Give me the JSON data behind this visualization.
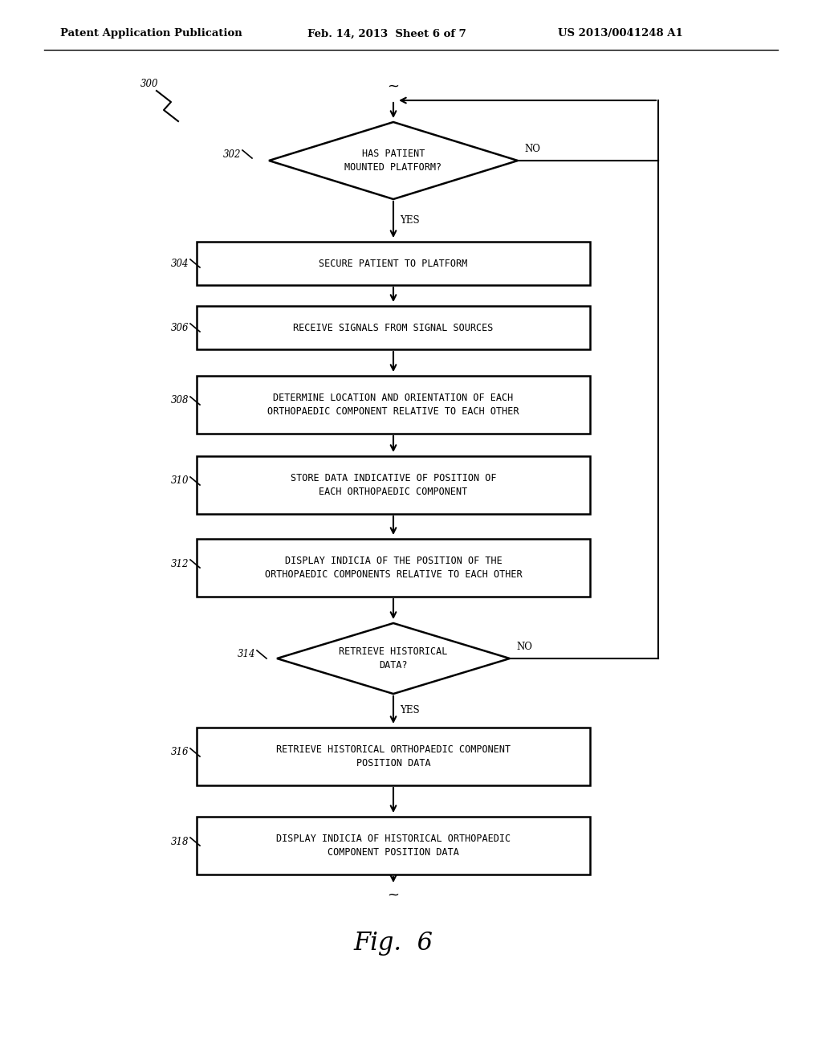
{
  "bg_color": "#ffffff",
  "header_left": "Patent Application Publication",
  "header_mid": "Feb. 14, 2013  Sheet 6 of 7",
  "header_right": "US 2013/0041248 A1",
  "fig_label": "Fig.  6",
  "nodes": {
    "302": {
      "type": "diamond",
      "label": "HAS PATIENT\nMOUNTED PLATFORM?"
    },
    "304": {
      "type": "rect",
      "label": "SECURE PATIENT TO PLATFORM"
    },
    "306": {
      "type": "rect",
      "label": "RECEIVE SIGNALS FROM SIGNAL SOURCES"
    },
    "308": {
      "type": "rect",
      "label": "DETERMINE LOCATION AND ORIENTATION OF EACH\nORTHOPAEDIC COMPONENT RELATIVE TO EACH OTHER"
    },
    "310": {
      "type": "rect",
      "label": "STORE DATA INDICATIVE OF POSITION OF\nEACH ORTHOPAEDIC COMPONENT"
    },
    "312": {
      "type": "rect",
      "label": "DISPLAY INDICIA OF THE POSITION OF THE\nORTHOPAEDIC COMPONENTS RELATIVE TO EACH OTHER"
    },
    "314": {
      "type": "diamond",
      "label": "RETRIEVE HISTORICAL\nDATA?"
    },
    "316": {
      "type": "rect",
      "label": "RETRIEVE HISTORICAL ORTHOPAEDIC COMPONENT\nPOSITION DATA"
    },
    "318": {
      "type": "rect",
      "label": "DISPLAY INDICIA OF HISTORICAL ORTHOPAEDIC\nCOMPONENT POSITION DATA"
    }
  }
}
